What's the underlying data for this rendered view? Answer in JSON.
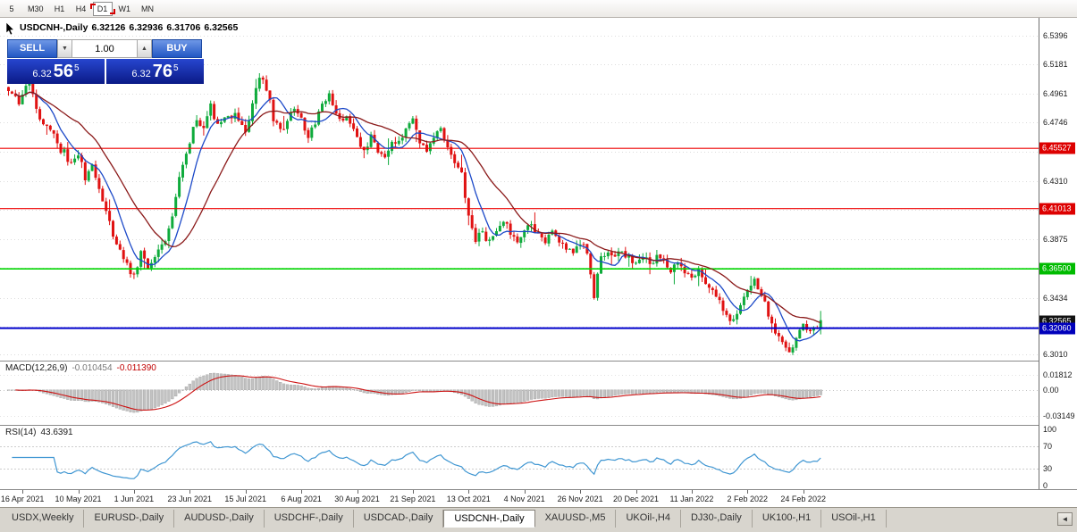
{
  "periodbar": {
    "buttons": [
      {
        "label": "5",
        "active": false
      },
      {
        "label": "M30",
        "active": false
      },
      {
        "label": "H1",
        "active": false
      },
      {
        "label": "H4",
        "active": false
      },
      {
        "label": "D1",
        "active": true
      },
      {
        "label": "W1",
        "active": false
      },
      {
        "label": "MN",
        "active": false
      }
    ]
  },
  "chart": {
    "symbol_timeframe": "USDCNH-,Daily",
    "ohlc": {
      "open": "6.32126",
      "high": "6.32936",
      "low": "6.31706",
      "close": "6.32565"
    }
  },
  "trade_panel": {
    "sell_label": "SELL",
    "buy_label": "BUY",
    "volume": "1.00",
    "volume_down_glyph": "▼",
    "volume_up_glyph": "▲",
    "sell_price": {
      "big": "6.32",
      "pips": "56",
      "frac": "5"
    },
    "buy_price": {
      "big": "6.32",
      "pips": "76",
      "frac": "5"
    }
  },
  "price_axis": {
    "ticks": [
      {
        "label": "6.5396",
        "value": 6.5396
      },
      {
        "label": "6.5181",
        "value": 6.5181
      },
      {
        "label": "6.4961",
        "value": 6.4961
      },
      {
        "label": "6.4746",
        "value": 6.4746
      },
      {
        "label": "6.4310",
        "value": 6.431
      },
      {
        "label": "6.3875",
        "value": 6.3875
      },
      {
        "label": "6.3434",
        "value": 6.3434
      },
      {
        "label": "6.3010",
        "value": 6.301
      }
    ],
    "badges": [
      {
        "label": "6.45527",
        "value": 6.45527,
        "color": "#dd0000"
      },
      {
        "label": "6.41013",
        "value": 6.41013,
        "color": "#dd0000"
      },
      {
        "label": "6.36500",
        "value": 6.365,
        "color": "#00bb00"
      },
      {
        "label": "6.32565",
        "value": 6.32565,
        "color": "#111111"
      },
      {
        "label": "6.32060",
        "value": 6.3206,
        "color": "#0000bb"
      }
    ]
  },
  "macd": {
    "label": "MACD(12,26,9)",
    "value1": "-0.010454",
    "value2": "-0.011390",
    "axis": [
      {
        "label": "0.01812",
        "value": 0.01812
      },
      {
        "label": "0.00",
        "value": 0.0
      },
      {
        "label": "-0.03149",
        "value": -0.03149
      }
    ]
  },
  "rsi": {
    "label": "RSI(14)",
    "value": "43.6391",
    "axis": [
      {
        "label": "100",
        "value": 100
      },
      {
        "label": "70",
        "value": 70
      },
      {
        "label": "30",
        "value": 30
      },
      {
        "label": "0",
        "value": 0
      }
    ]
  },
  "date_axis": [
    "16 Apr 2021",
    "10 May 2021",
    "1 Jun 2021",
    "23 Jun 2021",
    "15 Jul 2021",
    "6 Aug 2021",
    "30 Aug 2021",
    "21 Sep 2021",
    "13 Oct 2021",
    "4 Nov 2021",
    "26 Nov 2021",
    "20 Dec 2021",
    "11 Jan 2022",
    "2 Feb 2022",
    "24 Feb 2022"
  ],
  "tabs": {
    "items": [
      "USDX,Weekly",
      "EURUSD-,Daily",
      "AUDUSD-,Daily",
      "USDCHF-,Daily",
      "USDCAD-,Daily",
      "USDCNH-,Daily",
      "XAUUSD-,M5",
      "UKOil-,H4",
      "DJ30-,Daily",
      "UK100-,H1",
      "USOil-,H1"
    ],
    "active_index": 5,
    "scroll_left_glyph": "◄"
  },
  "chart_data": {
    "type": "candlestick",
    "symbol": "USDCNH",
    "timeframe": "Daily",
    "ohlc_current": {
      "open": 6.32126,
      "high": 6.32936,
      "low": 6.31706,
      "close": 6.32565
    },
    "y_range": [
      6.2963,
      6.553
    ],
    "grid_values": [
      6.5396,
      6.5181,
      6.4961,
      6.4746,
      6.4528,
      6.431,
      6.4093,
      6.3875,
      6.3655,
      6.3434,
      6.322,
      6.301
    ],
    "candle_count": 234,
    "tick_candle_indices": [
      4,
      20,
      36,
      52,
      68,
      84,
      100,
      116,
      132,
      148,
      164,
      180,
      196,
      212,
      228
    ],
    "close_anchors": [
      [
        0,
        6.498
      ],
      [
        3,
        6.49
      ],
      [
        6,
        6.506
      ],
      [
        9,
        6.478
      ],
      [
        12,
        6.468
      ],
      [
        15,
        6.455
      ],
      [
        18,
        6.444
      ],
      [
        20,
        6.45
      ],
      [
        22,
        6.434
      ],
      [
        24,
        6.443
      ],
      [
        27,
        6.417
      ],
      [
        30,
        6.39
      ],
      [
        33,
        6.373
      ],
      [
        36,
        6.36
      ],
      [
        38,
        6.377
      ],
      [
        40,
        6.364
      ],
      [
        43,
        6.38
      ],
      [
        46,
        6.394
      ],
      [
        48,
        6.418
      ],
      [
        50,
        6.442
      ],
      [
        52,
        6.46
      ],
      [
        54,
        6.477
      ],
      [
        56,
        6.469
      ],
      [
        58,
        6.487
      ],
      [
        60,
        6.473
      ],
      [
        63,
        6.481
      ],
      [
        66,
        6.477
      ],
      [
        68,
        6.466
      ],
      [
        70,
        6.489
      ],
      [
        72,
        6.512
      ],
      [
        74,
        6.496
      ],
      [
        76,
        6.479
      ],
      [
        78,
        6.47
      ],
      [
        80,
        6.477
      ],
      [
        82,
        6.486
      ],
      [
        84,
        6.477
      ],
      [
        86,
        6.463
      ],
      [
        88,
        6.477
      ],
      [
        90,
        6.489
      ],
      [
        92,
        6.494
      ],
      [
        94,
        6.482
      ],
      [
        97,
        6.477
      ],
      [
        100,
        6.463
      ],
      [
        102,
        6.455
      ],
      [
        104,
        6.462
      ],
      [
        106,
        6.454
      ],
      [
        108,
        6.448
      ],
      [
        110,
        6.456
      ],
      [
        112,
        6.463
      ],
      [
        114,
        6.47
      ],
      [
        116,
        6.477
      ],
      [
        118,
        6.462
      ],
      [
        120,
        6.455
      ],
      [
        122,
        6.463
      ],
      [
        124,
        6.47
      ],
      [
        126,
        6.455
      ],
      [
        128,
        6.447
      ],
      [
        130,
        6.438
      ],
      [
        132,
        6.404
      ],
      [
        134,
        6.385
      ],
      [
        136,
        6.393
      ],
      [
        138,
        6.386
      ],
      [
        140,
        6.393
      ],
      [
        142,
        6.399
      ],
      [
        144,
        6.392
      ],
      [
        146,
        6.386
      ],
      [
        148,
        6.393
      ],
      [
        150,
        6.399
      ],
      [
        152,
        6.392
      ],
      [
        154,
        6.386
      ],
      [
        156,
        6.391
      ],
      [
        158,
        6.385
      ],
      [
        160,
        6.381
      ],
      [
        162,
        6.378
      ],
      [
        164,
        6.386
      ],
      [
        166,
        6.378
      ],
      [
        168,
        6.347
      ],
      [
        170,
        6.373
      ],
      [
        172,
        6.379
      ],
      [
        174,
        6.372
      ],
      [
        176,
        6.379
      ],
      [
        178,
        6.375
      ],
      [
        180,
        6.37
      ],
      [
        182,
        6.376
      ],
      [
        184,
        6.371
      ],
      [
        186,
        6.376
      ],
      [
        188,
        6.371
      ],
      [
        190,
        6.366
      ],
      [
        192,
        6.369
      ],
      [
        194,
        6.362
      ],
      [
        196,
        6.358
      ],
      [
        198,
        6.363
      ],
      [
        200,
        6.355
      ],
      [
        202,
        6.349
      ],
      [
        204,
        6.34
      ],
      [
        206,
        6.331
      ],
      [
        208,
        6.324
      ],
      [
        210,
        6.338
      ],
      [
        212,
        6.353
      ],
      [
        214,
        6.358
      ],
      [
        216,
        6.344
      ],
      [
        218,
        6.331
      ],
      [
        220,
        6.319
      ],
      [
        222,
        6.311
      ],
      [
        224,
        6.306
      ],
      [
        226,
        6.314
      ],
      [
        228,
        6.322
      ],
      [
        230,
        6.317
      ],
      [
        233,
        6.3256
      ]
    ],
    "hlines": [
      {
        "value": 6.45527,
        "color": "#ee0000",
        "width": 1.2
      },
      {
        "value": 6.41013,
        "color": "#ee0000",
        "width": 1.2
      },
      {
        "value": 6.365,
        "color": "#00d500",
        "width": 1.6
      },
      {
        "value": 6.3206,
        "color": "#0000cc",
        "width": 2
      }
    ],
    "overlays": [
      {
        "name": "MA-fast",
        "period": 8,
        "color": "#1c49c8"
      },
      {
        "name": "MA-slow",
        "period": 21,
        "color": "#8b1a1a"
      }
    ],
    "indicators": {
      "macd": {
        "params": [
          12,
          26,
          9
        ],
        "current": [
          -0.010454,
          -0.01139
        ],
        "y_range": [
          -0.043,
          0.036
        ],
        "hist_color": "#c2c2c2",
        "signal_color": "#cc1111"
      },
      "rsi": {
        "period": 14,
        "current": 43.6391,
        "levels": [
          70,
          30
        ],
        "y_range": [
          0,
          100
        ],
        "line_color": "#3f96d2"
      }
    }
  }
}
